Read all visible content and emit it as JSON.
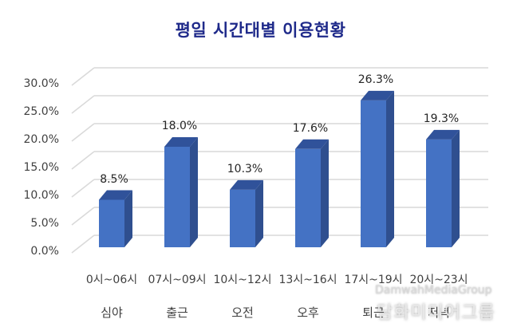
{
  "title": "평일 시간대별 이용현황",
  "colors": {
    "bar_front": "#4472c4",
    "bar_side": "#2f4f8f",
    "bar_top": "#30529a",
    "grid": "#d9d9d9",
    "title": "#1f2a8a"
  },
  "y_ticks": [
    "30.0%",
    "25.0%",
    "20.0%",
    "15.0%",
    "10.0%",
    "5.0%",
    "0.0%"
  ],
  "bars": [
    {
      "range": "0시~06시",
      "name": "심야",
      "value": 8.5,
      "label": "8.5%"
    },
    {
      "range": "07시~09시",
      "name": "출근",
      "value": 18.0,
      "label": "18.0%"
    },
    {
      "range": "10시~12시",
      "name": "오전",
      "value": 10.3,
      "label": "10.3%"
    },
    {
      "range": "13시~16시",
      "name": "오후",
      "value": 17.6,
      "label": "17.6%"
    },
    {
      "range": "17시~19시",
      "name": "퇴근",
      "value": 26.3,
      "label": "26.3%"
    },
    {
      "range": "20시~23시",
      "name": "저녁",
      "value": 19.3,
      "label": "19.3%"
    }
  ],
  "watermark": {
    "en": "DamwahMediaGroup",
    "ko": "담화미디어그룹"
  },
  "chart_data": {
    "type": "bar",
    "title": "평일 시간대별 이용현황",
    "categories": [
      "0시~06시 심야",
      "07시~09시 출근",
      "10시~12시 오전",
      "13시~16시 오후",
      "17시~19시 퇴근",
      "20시~23시 저녁"
    ],
    "values": [
      8.5,
      18.0,
      10.3,
      17.6,
      26.3,
      19.3
    ],
    "value_unit": "%",
    "xlabel": "",
    "ylabel": "",
    "ylim": [
      0,
      30
    ],
    "y_tick_step": 5,
    "grid": true,
    "legend": null,
    "style": "3d-column"
  }
}
